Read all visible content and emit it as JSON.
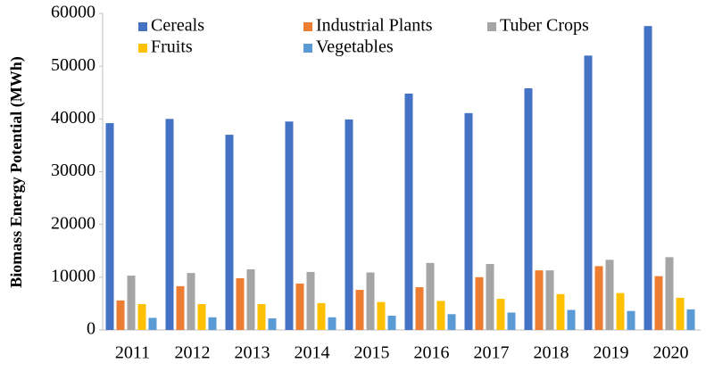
{
  "chart_data": {
    "type": "bar",
    "y_label": "Biomass Energy Potential (MWh)",
    "categories": [
      "2011",
      "2012",
      "2013",
      "2014",
      "2015",
      "2016",
      "2017",
      "2018",
      "2019",
      "2020"
    ],
    "series": [
      {
        "name": "Cereals",
        "color": "#4472c4",
        "values": [
          39200,
          40000,
          37000,
          39500,
          39900,
          44800,
          41100,
          45800,
          52000,
          57600
        ]
      },
      {
        "name": "Industrial Plants",
        "color": "#ed7d31",
        "values": [
          5600,
          8300,
          9800,
          8800,
          7600,
          8100,
          10000,
          11300,
          12100,
          10200
        ]
      },
      {
        "name": "Tuber Crops",
        "color": "#a5a5a5",
        "values": [
          10300,
          10800,
          11500,
          11000,
          10900,
          12700,
          12500,
          11300,
          13300,
          13800
        ]
      },
      {
        "name": "Fruits",
        "color": "#ffc000",
        "values": [
          4900,
          4900,
          4900,
          5100,
          5300,
          5500,
          5900,
          6800,
          7000,
          6100
        ]
      },
      {
        "name": "Vegetables",
        "color": "#5b9bd5",
        "values": [
          2300,
          2400,
          2200,
          2400,
          2700,
          3000,
          3300,
          3800,
          3600,
          3900
        ]
      }
    ],
    "ylim": [
      0,
      60000
    ],
    "yticks": [
      0,
      10000,
      20000,
      30000,
      40000,
      50000,
      60000
    ]
  }
}
